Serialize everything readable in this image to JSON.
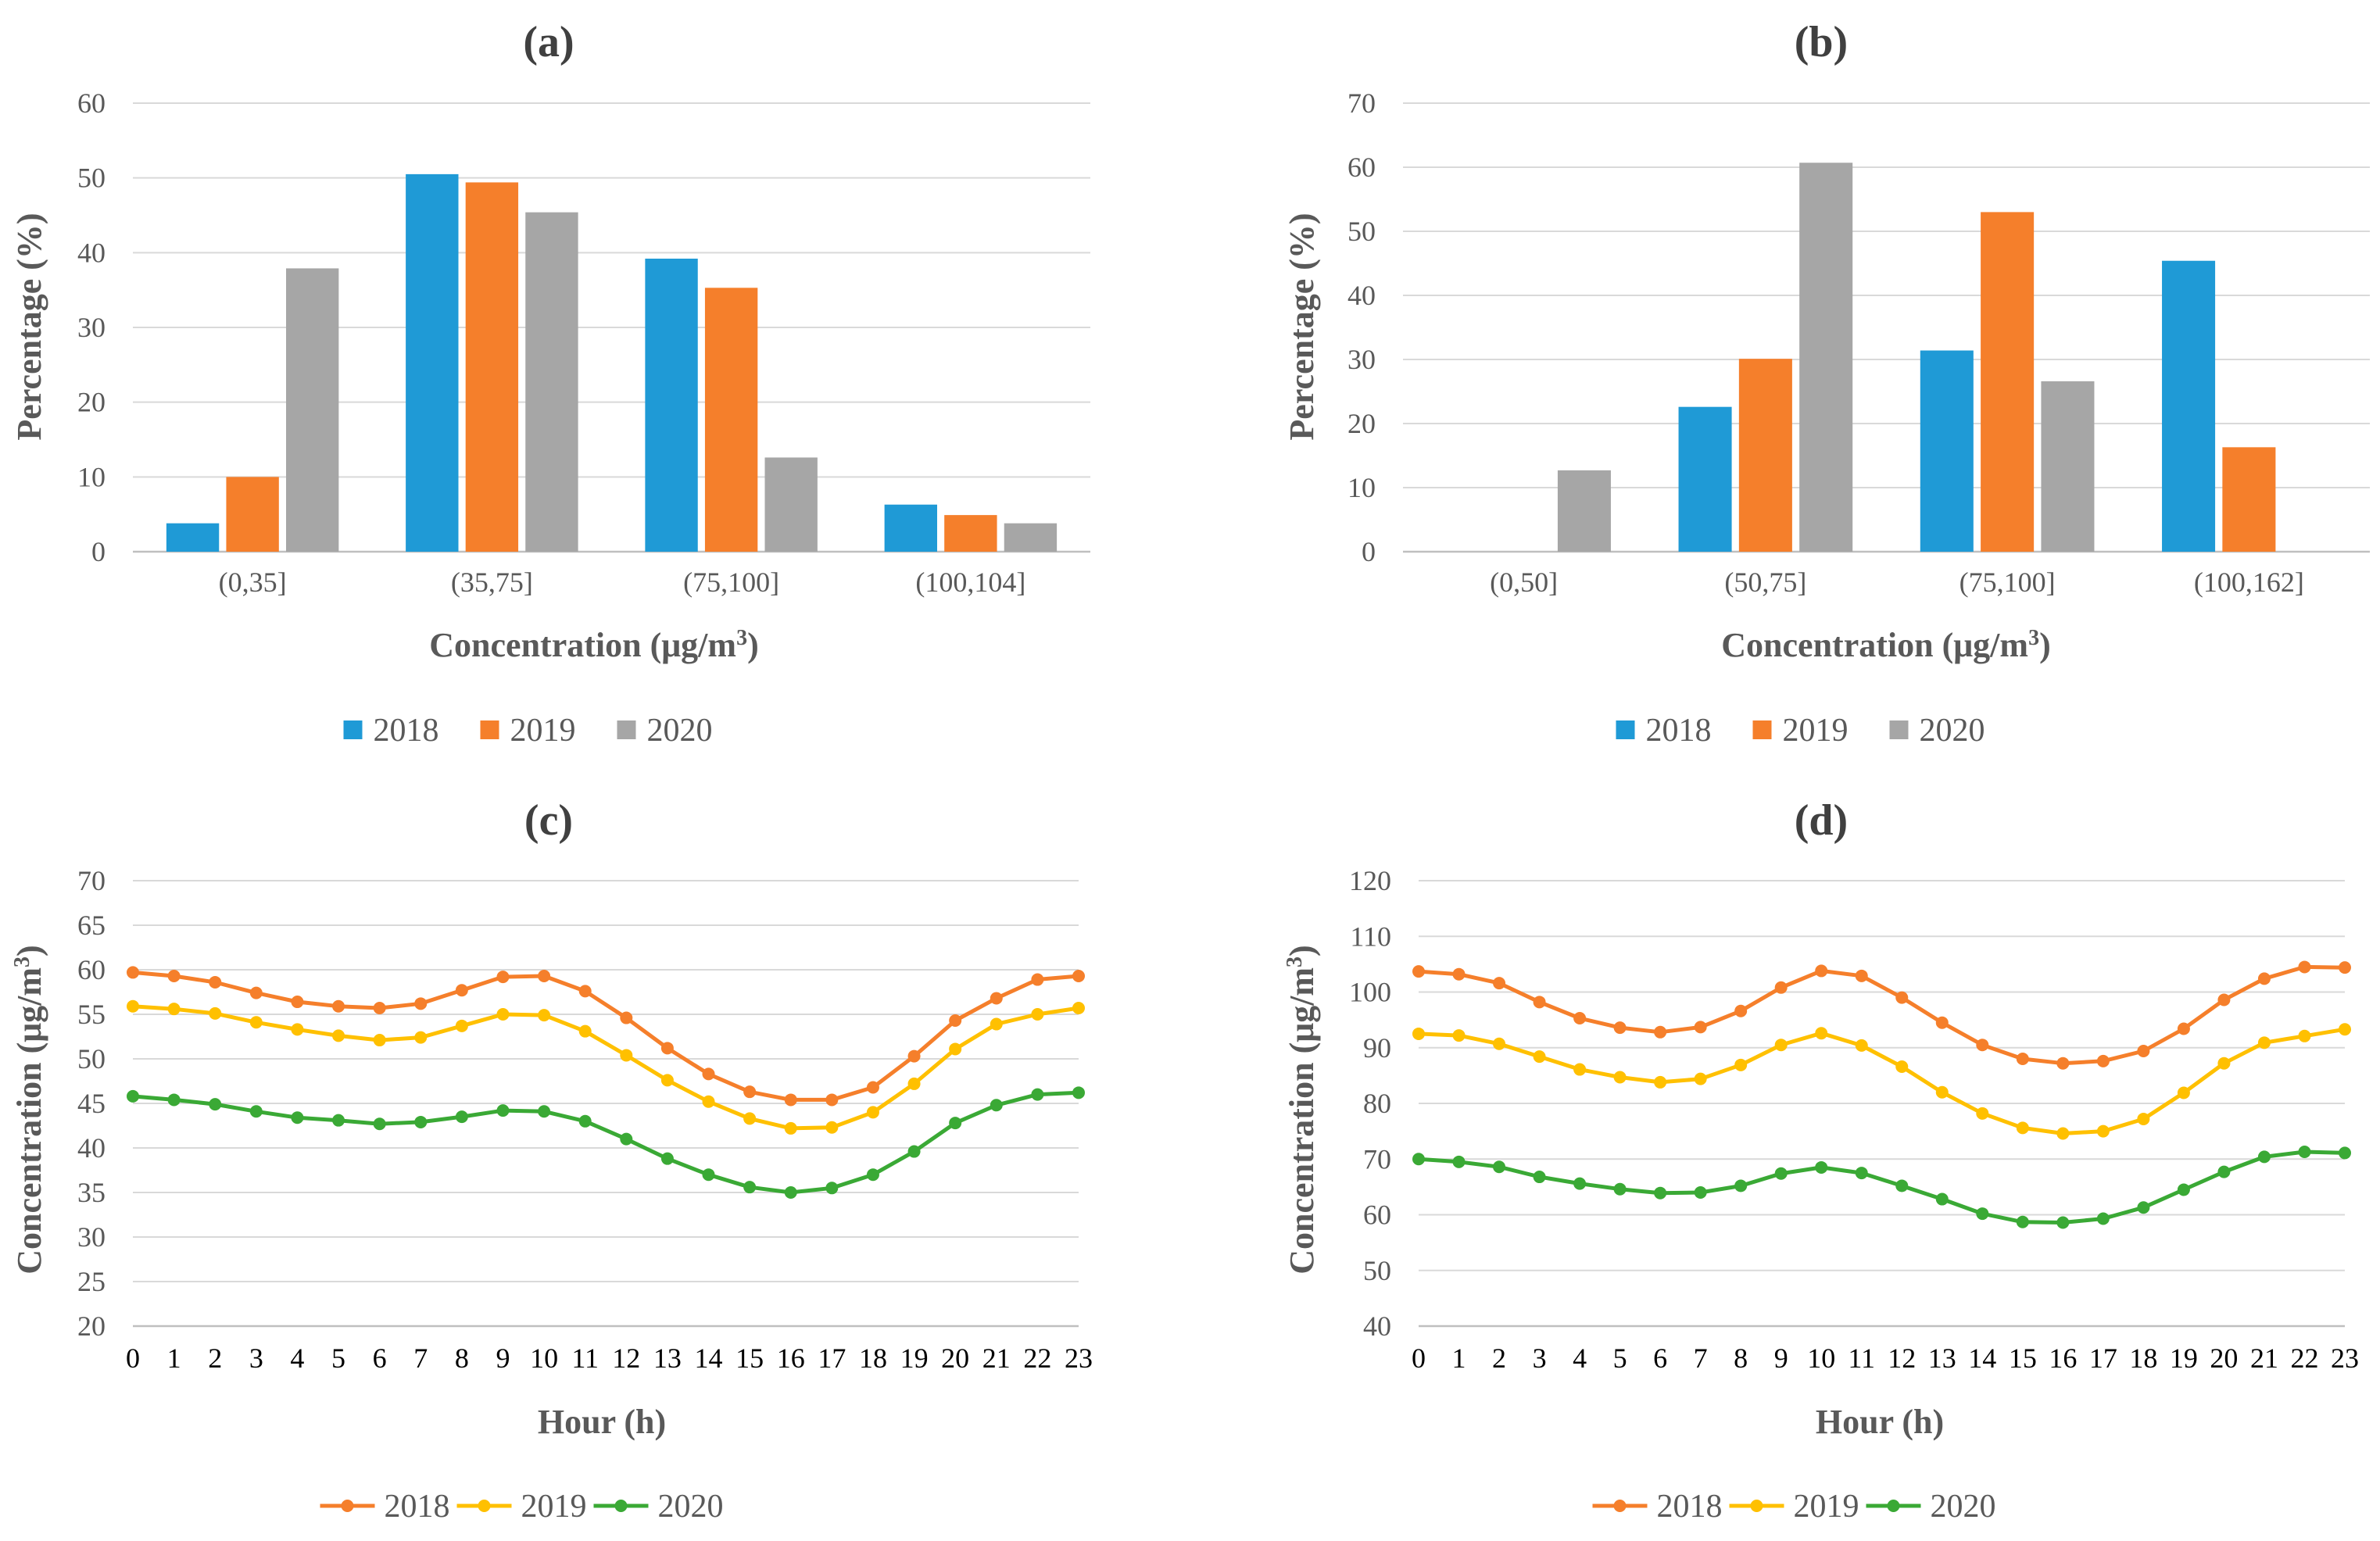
{
  "chart_data": [
    {
      "panel_label": "(a)",
      "type": "bar",
      "categories": [
        "(0,35]",
        "(35,75]",
        "(75,100]",
        "(100,104]"
      ],
      "series": [
        {
          "name": "2018",
          "color": "#1F9AD6",
          "values": [
            3.8,
            50.5,
            39.2,
            6.3
          ]
        },
        {
          "name": "2019",
          "color": "#F57F2B",
          "values": [
            10.0,
            49.4,
            35.3,
            4.9
          ]
        },
        {
          "name": "2020",
          "color": "#A6A6A6",
          "values": [
            37.9,
            45.4,
            12.6,
            3.8
          ]
        }
      ],
      "xlabel_main": "Concentration (μg/m",
      "xlabel_sup": "3",
      "xlabel_end": ")",
      "ylabel": "Percentage (%)",
      "ylim": [
        0,
        60
      ],
      "yticks": [
        "0",
        "10",
        "20",
        "30",
        "40",
        "50",
        "60"
      ],
      "legend_position": "bottom-center"
    },
    {
      "panel_label": "(b)",
      "type": "bar",
      "categories": [
        "(0,50]",
        "(50,75]",
        "(75,100]",
        "(100,162]"
      ],
      "series": [
        {
          "name": "2018",
          "color": "#1F9AD6",
          "values": [
            0,
            22.6,
            31.4,
            45.4
          ]
        },
        {
          "name": "2019",
          "color": "#F57F2B",
          "values": [
            0,
            30.1,
            53.0,
            16.3
          ]
        },
        {
          "name": "2020",
          "color": "#A6A6A6",
          "values": [
            12.7,
            60.7,
            26.6,
            0
          ]
        }
      ],
      "xlabel_main": "Concentration (μg/m",
      "xlabel_sup": "3",
      "xlabel_end": ")",
      "ylabel": "Percentage (%)",
      "ylim": [
        0,
        70
      ],
      "yticks": [
        "0",
        "10",
        "20",
        "30",
        "40",
        "50",
        "60",
        "70"
      ],
      "legend_position": "bottom-center"
    },
    {
      "panel_label": "(c)",
      "type": "line",
      "x": [
        "0",
        "1",
        "2",
        "3",
        "4",
        "5",
        "6",
        "7",
        "8",
        "9",
        "10",
        "11",
        "12",
        "13",
        "14",
        "15",
        "16",
        "17",
        "18",
        "19",
        "20",
        "21",
        "22",
        "23"
      ],
      "series": [
        {
          "name": "2018",
          "color": "#F57F2B",
          "values": [
            59.7,
            59.3,
            58.6,
            57.4,
            56.4,
            55.9,
            55.7,
            56.2,
            57.7,
            59.2,
            59.3,
            57.6,
            54.6,
            51.2,
            48.3,
            46.3,
            45.4,
            45.4,
            46.8,
            50.3,
            54.3,
            56.8,
            58.9,
            59.3
          ]
        },
        {
          "name": "2019",
          "color": "#FFC000",
          "values": [
            55.9,
            55.6,
            55.1,
            54.1,
            53.3,
            52.6,
            52.1,
            52.4,
            53.7,
            55.0,
            54.9,
            53.1,
            50.4,
            47.6,
            45.2,
            43.3,
            42.2,
            42.3,
            44.0,
            47.2,
            51.1,
            53.9,
            55.0,
            55.7
          ]
        },
        {
          "name": "2020",
          "color": "#3AA935",
          "values": [
            45.8,
            45.4,
            44.9,
            44.1,
            43.4,
            43.1,
            42.7,
            42.9,
            43.5,
            44.2,
            44.1,
            43.0,
            41.0,
            38.8,
            37.0,
            35.6,
            35.0,
            35.5,
            37.0,
            39.6,
            42.8,
            44.8,
            46.0,
            46.2
          ]
        }
      ],
      "xlabel": "Hour (h)",
      "ylabel_main": "Concentration (μg/m",
      "ylabel_sup": "3",
      "ylabel_end": ")",
      "ylim": [
        20,
        70
      ],
      "yticks": [
        "20",
        "25",
        "30",
        "35",
        "40",
        "45",
        "50",
        "55",
        "60",
        "65",
        "70"
      ],
      "legend_position": "bottom-center"
    },
    {
      "panel_label": "(d)",
      "type": "line",
      "x": [
        "0",
        "1",
        "2",
        "3",
        "4",
        "5",
        "6",
        "7",
        "8",
        "9",
        "10",
        "11",
        "12",
        "13",
        "14",
        "15",
        "16",
        "17",
        "18",
        "19",
        "20",
        "21",
        "22",
        "23"
      ],
      "series": [
        {
          "name": "2018",
          "color": "#F57F2B",
          "values": [
            103.7,
            103.2,
            101.6,
            98.2,
            95.3,
            93.6,
            92.8,
            93.7,
            96.6,
            100.8,
            103.8,
            102.9,
            99.0,
            94.5,
            90.5,
            88.0,
            87.2,
            87.6,
            89.4,
            93.4,
            98.6,
            102.4,
            104.5,
            104.4
          ]
        },
        {
          "name": "2019",
          "color": "#FFC000",
          "values": [
            92.5,
            92.2,
            90.7,
            88.4,
            86.1,
            84.7,
            83.8,
            84.4,
            86.9,
            90.5,
            92.6,
            90.4,
            86.6,
            82.0,
            78.2,
            75.6,
            74.6,
            75.0,
            77.2,
            81.9,
            87.2,
            90.9,
            92.1,
            93.3
          ]
        },
        {
          "name": "2020",
          "color": "#3AA935",
          "values": [
            70.0,
            69.5,
            68.6,
            66.8,
            65.6,
            64.6,
            63.9,
            64.0,
            65.2,
            67.4,
            68.5,
            67.5,
            65.2,
            62.8,
            60.2,
            58.7,
            58.6,
            59.3,
            61.3,
            64.5,
            67.7,
            70.4,
            71.3,
            71.1
          ]
        }
      ],
      "xlabel": "Hour (h)",
      "ylabel_main": "Concentration (μg/m",
      "ylabel_sup": "3",
      "ylabel_end": ")",
      "ylim": [
        40,
        120
      ],
      "yticks": [
        "40",
        "50",
        "60",
        "70",
        "80",
        "90",
        "100",
        "110",
        "120"
      ],
      "legend_position": "bottom-center"
    }
  ],
  "colors": {
    "grid": "#D9D9D9",
    "axis": "#BFBFBF",
    "text": "#595959"
  }
}
